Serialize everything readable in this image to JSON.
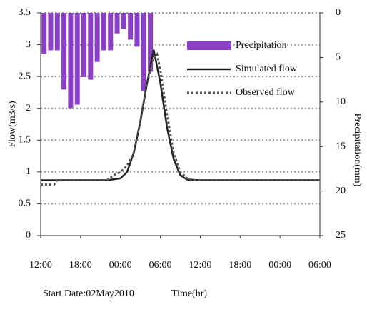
{
  "chart_data": {
    "type": "combo",
    "ylabel": "Flow(m3/s)",
    "y2label": "Precipitation(mm)",
    "xlabel": "Time(hr)",
    "annotation": "Start Date:02May2010",
    "xlim": [
      0,
      42
    ],
    "xticks": [
      {
        "value": 0,
        "label": "12:00"
      },
      {
        "value": 6,
        "label": "18:00"
      },
      {
        "value": 12,
        "label": "00:00"
      },
      {
        "value": 18,
        "label": "06:00"
      },
      {
        "value": 24,
        "label": "12:00"
      },
      {
        "value": 30,
        "label": "18:00"
      },
      {
        "value": 36,
        "label": "00:00"
      },
      {
        "value": 42,
        "label": "06:00"
      }
    ],
    "ylim": [
      0,
      3.5
    ],
    "yticks": [
      0,
      0.5,
      1,
      1.5,
      2,
      2.5,
      3,
      3.5
    ],
    "y2lim": [
      0,
      25
    ],
    "y2ticks": [
      0,
      5,
      10,
      15,
      20,
      25
    ],
    "y2_inverted": true,
    "grid": true,
    "legend": "upper right",
    "series": [
      {
        "name": "Precipitation",
        "type": "bar",
        "axis": "y2",
        "color": "#8a3fc6",
        "x": [
          0.5,
          1.5,
          2.5,
          3.5,
          4.5,
          5.5,
          6.5,
          7.5,
          8.5,
          9.5,
          10.5,
          11.5,
          12.5,
          13.5,
          14.5,
          15.5,
          16.5
        ],
        "values": [
          4.6,
          4.2,
          4.2,
          8.6,
          10.7,
          10.3,
          7.2,
          7.5,
          5.5,
          4.2,
          4.2,
          2.3,
          1.8,
          3,
          3.8,
          8.8,
          6.6
        ]
      },
      {
        "name": "Simulated flow",
        "type": "line",
        "style": "solid",
        "color": "#222222",
        "x": [
          0,
          10,
          12,
          13,
          14,
          15,
          16,
          17,
          18,
          19,
          20,
          21,
          22,
          24,
          42
        ],
        "values": [
          0.87,
          0.87,
          0.9,
          1.0,
          1.3,
          1.8,
          2.4,
          2.92,
          2.4,
          1.7,
          1.2,
          0.95,
          0.88,
          0.87,
          0.87
        ]
      },
      {
        "name": "Observed flow",
        "type": "line",
        "style": "dotted",
        "color": "#555555",
        "x": [
          0,
          2,
          2.5,
          10,
          11,
          12,
          13,
          14,
          15,
          16,
          17,
          17.5,
          18,
          19,
          20,
          21,
          22,
          23,
          25,
          42
        ],
        "values": [
          0.8,
          0.8,
          0.87,
          0.87,
          0.95,
          1.0,
          1.1,
          1.3,
          1.8,
          2.4,
          2.8,
          2.85,
          2.6,
          1.9,
          1.3,
          1.0,
          0.9,
          0.87,
          0.87,
          0.87
        ]
      }
    ]
  }
}
